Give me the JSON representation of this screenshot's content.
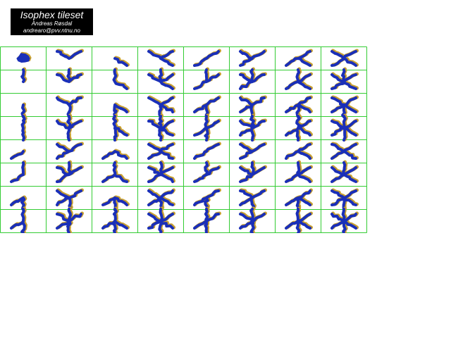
{
  "header": {
    "title": "Isophex tileset",
    "author": "Andreas Røsdal",
    "email": "andrearo@pvv.ntnu.no"
  },
  "tileset": {
    "rows": 8,
    "columns": 8,
    "grid_color": "#33cc33",
    "river_color": "#1a2fb8",
    "bank_color": "#c8a030",
    "background_color": "#ffffff"
  }
}
